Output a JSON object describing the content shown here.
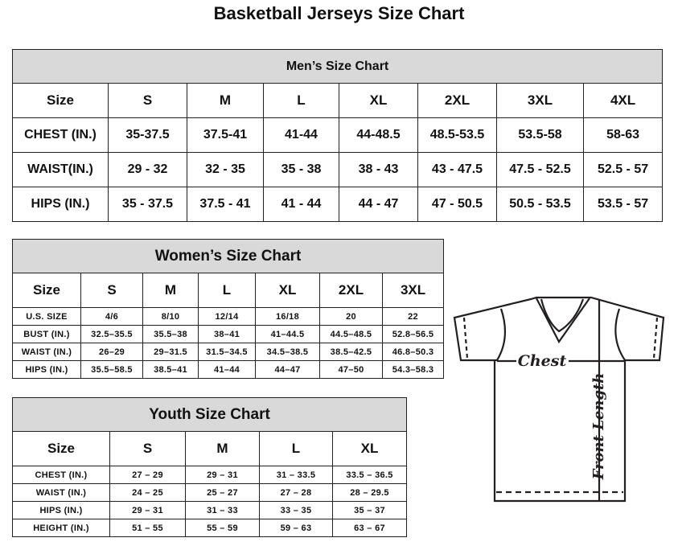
{
  "title": "Basketball Jerseys Size Chart",
  "men": {
    "heading": "Men’s Size Chart",
    "sizes": [
      "Size",
      "S",
      "M",
      "L",
      "XL",
      "2XL",
      "3XL",
      "4XL"
    ],
    "rows": [
      [
        "CHEST (IN.)",
        "35-37.5",
        "37.5-41",
        "41-44",
        "44-48.5",
        "48.5-53.5",
        "53.5-58",
        "58-63"
      ],
      [
        "WAIST(IN.)",
        "29 - 32",
        "32 - 35",
        "35 - 38",
        "38 - 43",
        "43 - 47.5",
        "47.5 - 52.5",
        "52.5 - 57"
      ],
      [
        "HIPS (IN.)",
        "35 - 37.5",
        "37.5 - 41",
        "41 - 44",
        "44 - 47",
        "47 - 50.5",
        "50.5 - 53.5",
        "53.5 - 57"
      ]
    ]
  },
  "women": {
    "heading": "Women’s Size Chart",
    "sizes": [
      "Size",
      "S",
      "M",
      "L",
      "XL",
      "2XL",
      "3XL"
    ],
    "rows": [
      [
        "U.S.  SIZE",
        "4/6",
        "8/10",
        "12/14",
        "16/18",
        "20",
        "22"
      ],
      [
        "BUST  (IN.)",
        "32.5–35.5",
        "35.5–38",
        "38–41",
        "41–44.5",
        "44.5–48.5",
        "52.8–56.5"
      ],
      [
        "WAIST  (IN.)",
        "26–29",
        "29–31.5",
        "31.5–34.5",
        "34.5–38.5",
        "38.5–42.5",
        "46.8–50.3"
      ],
      [
        "HIPS  (IN.)",
        "35.5–58.5",
        "38.5–41",
        "41–44",
        "44–47",
        "47–50",
        "54.3–58.3"
      ]
    ]
  },
  "youth": {
    "heading": "Youth Size Chart",
    "sizes": [
      "Size",
      "S",
      "M",
      "L",
      "XL"
    ],
    "rows": [
      [
        "CHEST  (IN.)",
        "27  –  29",
        "29  –  31",
        "31  –  33.5",
        "33.5  –  36.5"
      ],
      [
        "WAIST  (IN.)",
        "24  –  25",
        "25  –  27",
        "27  –  28",
        "28  –  29.5"
      ],
      [
        "HIPS  (IN.)",
        "29  –  31",
        "31  –  33",
        "33  –  35",
        "35  –  37"
      ],
      [
        "HEIGHT  (IN.)",
        "51  –  55",
        "55  –  59",
        "59  –  63",
        "63  –  67"
      ]
    ]
  },
  "diagram": {
    "chest_label": "Chest",
    "length_label": "Front Length"
  },
  "colors": {
    "header_bg": "#d9d9d9",
    "line": "#231f20"
  }
}
